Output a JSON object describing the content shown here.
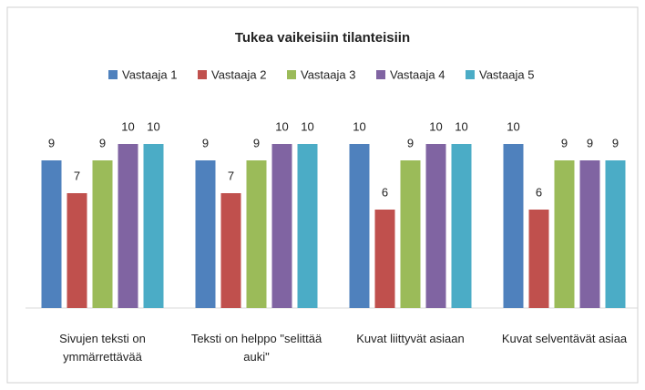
{
  "chart_data": {
    "type": "bar",
    "title": "Tukea vaikeisiin tilanteisiin",
    "categories": [
      "Sivujen teksti on ymmärrettävää",
      "Teksti on helppo \"selittää auki\"",
      "Kuvat liittyvät asiaan",
      "Kuvat selventävät asiaa"
    ],
    "series": [
      {
        "name": "Vastaaja 1",
        "color": "#4f81bd",
        "values": [
          9,
          9,
          10,
          10
        ]
      },
      {
        "name": "Vastaaja 2",
        "color": "#c0504d",
        "values": [
          7,
          7,
          6,
          6
        ]
      },
      {
        "name": "Vastaaja 3",
        "color": "#9bbb59",
        "values": [
          9,
          9,
          9,
          9
        ]
      },
      {
        "name": "Vastaaja 4",
        "color": "#8064a2",
        "values": [
          10,
          10,
          10,
          9
        ]
      },
      {
        "name": "Vastaaja 5",
        "color": "#4bacc6",
        "values": [
          10,
          10,
          10,
          9
        ]
      }
    ],
    "ylim": [
      0,
      10
    ],
    "legend": "top"
  }
}
